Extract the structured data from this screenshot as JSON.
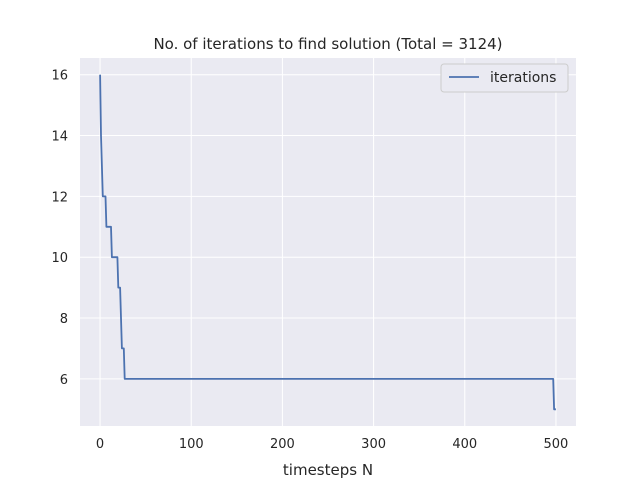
{
  "chart_data": {
    "type": "line",
    "title": "No. of iterations to find solution (Total = 3124)",
    "xlabel": "timesteps N",
    "ylabel": "",
    "xlim": [
      -22,
      522
    ],
    "ylim": [
      4.45,
      16.55
    ],
    "x_ticks": [
      0,
      100,
      200,
      300,
      400,
      500
    ],
    "y_ticks": [
      6,
      8,
      10,
      12,
      14,
      16
    ],
    "grid": true,
    "legend": {
      "placement": "top-right"
    },
    "series": [
      {
        "name": "iterations",
        "color": "#4c72b0",
        "points": [
          [
            0,
            16
          ],
          [
            1,
            14
          ],
          [
            2,
            13
          ],
          [
            3,
            12
          ],
          [
            6,
            12
          ],
          [
            7,
            11
          ],
          [
            12,
            11
          ],
          [
            13,
            10
          ],
          [
            19,
            10
          ],
          [
            20,
            9
          ],
          [
            22,
            9
          ],
          [
            23,
            8
          ],
          [
            24,
            7
          ],
          [
            26,
            7
          ],
          [
            27,
            6
          ],
          [
            497,
            6
          ],
          [
            498,
            5
          ],
          [
            500,
            5
          ]
        ]
      }
    ],
    "colors": {
      "plot_bg": "#eaeaf2",
      "grid": "#ffffff",
      "text": "#262626"
    }
  }
}
